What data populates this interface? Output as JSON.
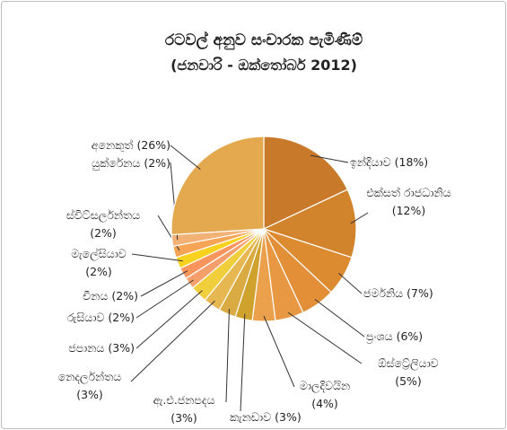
{
  "chart_data": {
    "type": "pie",
    "title": "රටවල් අනුව සංචාරක පැමිණීම්",
    "subtitle": "(ජනවාරි - ඔක්තෝබර් 2012)",
    "categories": [
      "ඉන්දියාව",
      "එක්සත් රාජධානිය",
      "ජර්මනිය",
      "ප්‍රංශය",
      "ඕස්ට්‍රේලියාව",
      "මාලදිවයින",
      "කැනඩාව",
      "ඇ.එ.ජනපදය",
      "නෙදර්ලන්තය",
      "ජපානය",
      "රුසියාව",
      "චීනය",
      "මැලේසියාව",
      "ස්විට්සර්ලන්තය",
      "යුක්රේනය",
      "අනෙකුත්"
    ],
    "values": [
      18,
      12,
      7,
      6,
      5,
      4,
      3,
      3,
      3,
      3,
      2,
      2,
      2,
      2,
      2,
      26
    ],
    "value_labels": [
      "(18%)",
      "(12%)",
      "(7%)",
      "(6%)",
      "(5%)",
      "(4%)",
      "(3%)",
      "(3%)",
      "(3%)",
      "(3%)",
      "(2%)",
      "(2%)",
      "(2%)",
      "(2%)",
      "(2%)",
      "(26%)"
    ],
    "colors": [
      "#c8792a",
      "#d2842d",
      "#dc8b30",
      "#e38f38",
      "#e89843",
      "#eba04c",
      "#cfa22e",
      "#d9ab42",
      "#e7b852",
      "#f1cf3c",
      "#f5a06c",
      "#f7955c",
      "#f8d21e",
      "#f6a455",
      "#f2b276",
      "#e4a94e"
    ]
  }
}
